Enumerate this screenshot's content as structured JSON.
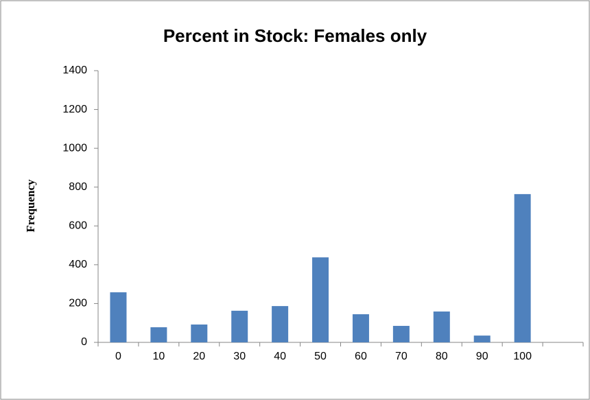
{
  "chart_data": {
    "type": "bar",
    "title": "Percent in Stock: Females only",
    "y_label": "Frequency",
    "categories": [
      "0",
      "10",
      "20",
      "30",
      "40",
      "50",
      "60",
      "70",
      "80",
      "90",
      "100",
      null
    ],
    "values": [
      258,
      78,
      92,
      163,
      187,
      438,
      145,
      85,
      159,
      35,
      764,
      null
    ],
    "color": "#4f81bd",
    "ylim": [
      0,
      1400
    ],
    "yticks": [
      0,
      200,
      400,
      600,
      800,
      1000,
      1200,
      1400
    ],
    "grid": false
  }
}
